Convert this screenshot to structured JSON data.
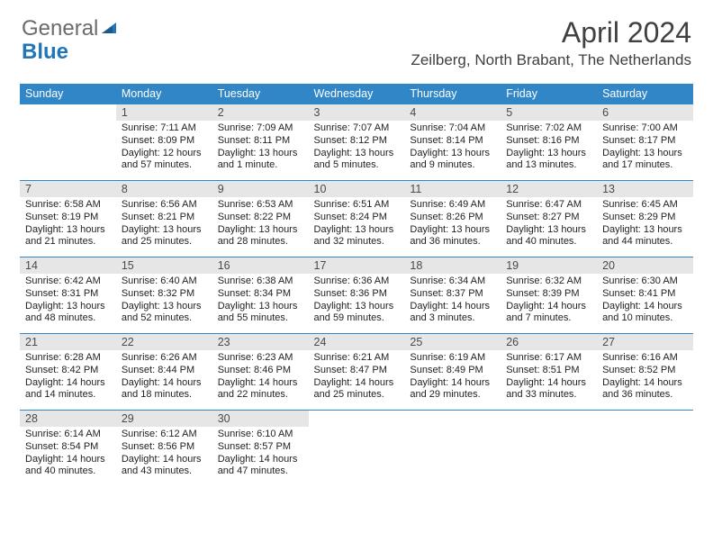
{
  "logo": {
    "text1": "General",
    "text2": "Blue"
  },
  "header": {
    "month": "April 2024",
    "location": "Zeilberg, North Brabant, The Netherlands"
  },
  "dayNames": [
    "Sunday",
    "Monday",
    "Tuesday",
    "Wednesday",
    "Thursday",
    "Friday",
    "Saturday"
  ],
  "colors": {
    "headerBg": "#3186c7",
    "headerText": "#ffffff",
    "dayNumBg": "#e6e6e6",
    "dayNumText": "#4a4a4a",
    "bodyText": "#222222",
    "rowBorder": "#3186c7",
    "logoGray": "#6b6b6b",
    "logoBlue": "#2176b8"
  },
  "weeks": [
    [
      {
        "empty": true
      },
      {
        "num": "1",
        "sunrise": "Sunrise: 7:11 AM",
        "sunset": "Sunset: 8:09 PM",
        "daylight1": "Daylight: 12 hours",
        "daylight2": "and 57 minutes."
      },
      {
        "num": "2",
        "sunrise": "Sunrise: 7:09 AM",
        "sunset": "Sunset: 8:11 PM",
        "daylight1": "Daylight: 13 hours",
        "daylight2": "and 1 minute."
      },
      {
        "num": "3",
        "sunrise": "Sunrise: 7:07 AM",
        "sunset": "Sunset: 8:12 PM",
        "daylight1": "Daylight: 13 hours",
        "daylight2": "and 5 minutes."
      },
      {
        "num": "4",
        "sunrise": "Sunrise: 7:04 AM",
        "sunset": "Sunset: 8:14 PM",
        "daylight1": "Daylight: 13 hours",
        "daylight2": "and 9 minutes."
      },
      {
        "num": "5",
        "sunrise": "Sunrise: 7:02 AM",
        "sunset": "Sunset: 8:16 PM",
        "daylight1": "Daylight: 13 hours",
        "daylight2": "and 13 minutes."
      },
      {
        "num": "6",
        "sunrise": "Sunrise: 7:00 AM",
        "sunset": "Sunset: 8:17 PM",
        "daylight1": "Daylight: 13 hours",
        "daylight2": "and 17 minutes."
      }
    ],
    [
      {
        "num": "7",
        "sunrise": "Sunrise: 6:58 AM",
        "sunset": "Sunset: 8:19 PM",
        "daylight1": "Daylight: 13 hours",
        "daylight2": "and 21 minutes."
      },
      {
        "num": "8",
        "sunrise": "Sunrise: 6:56 AM",
        "sunset": "Sunset: 8:21 PM",
        "daylight1": "Daylight: 13 hours",
        "daylight2": "and 25 minutes."
      },
      {
        "num": "9",
        "sunrise": "Sunrise: 6:53 AM",
        "sunset": "Sunset: 8:22 PM",
        "daylight1": "Daylight: 13 hours",
        "daylight2": "and 28 minutes."
      },
      {
        "num": "10",
        "sunrise": "Sunrise: 6:51 AM",
        "sunset": "Sunset: 8:24 PM",
        "daylight1": "Daylight: 13 hours",
        "daylight2": "and 32 minutes."
      },
      {
        "num": "11",
        "sunrise": "Sunrise: 6:49 AM",
        "sunset": "Sunset: 8:26 PM",
        "daylight1": "Daylight: 13 hours",
        "daylight2": "and 36 minutes."
      },
      {
        "num": "12",
        "sunrise": "Sunrise: 6:47 AM",
        "sunset": "Sunset: 8:27 PM",
        "daylight1": "Daylight: 13 hours",
        "daylight2": "and 40 minutes."
      },
      {
        "num": "13",
        "sunrise": "Sunrise: 6:45 AM",
        "sunset": "Sunset: 8:29 PM",
        "daylight1": "Daylight: 13 hours",
        "daylight2": "and 44 minutes."
      }
    ],
    [
      {
        "num": "14",
        "sunrise": "Sunrise: 6:42 AM",
        "sunset": "Sunset: 8:31 PM",
        "daylight1": "Daylight: 13 hours",
        "daylight2": "and 48 minutes."
      },
      {
        "num": "15",
        "sunrise": "Sunrise: 6:40 AM",
        "sunset": "Sunset: 8:32 PM",
        "daylight1": "Daylight: 13 hours",
        "daylight2": "and 52 minutes."
      },
      {
        "num": "16",
        "sunrise": "Sunrise: 6:38 AM",
        "sunset": "Sunset: 8:34 PM",
        "daylight1": "Daylight: 13 hours",
        "daylight2": "and 55 minutes."
      },
      {
        "num": "17",
        "sunrise": "Sunrise: 6:36 AM",
        "sunset": "Sunset: 8:36 PM",
        "daylight1": "Daylight: 13 hours",
        "daylight2": "and 59 minutes."
      },
      {
        "num": "18",
        "sunrise": "Sunrise: 6:34 AM",
        "sunset": "Sunset: 8:37 PM",
        "daylight1": "Daylight: 14 hours",
        "daylight2": "and 3 minutes."
      },
      {
        "num": "19",
        "sunrise": "Sunrise: 6:32 AM",
        "sunset": "Sunset: 8:39 PM",
        "daylight1": "Daylight: 14 hours",
        "daylight2": "and 7 minutes."
      },
      {
        "num": "20",
        "sunrise": "Sunrise: 6:30 AM",
        "sunset": "Sunset: 8:41 PM",
        "daylight1": "Daylight: 14 hours",
        "daylight2": "and 10 minutes."
      }
    ],
    [
      {
        "num": "21",
        "sunrise": "Sunrise: 6:28 AM",
        "sunset": "Sunset: 8:42 PM",
        "daylight1": "Daylight: 14 hours",
        "daylight2": "and 14 minutes."
      },
      {
        "num": "22",
        "sunrise": "Sunrise: 6:26 AM",
        "sunset": "Sunset: 8:44 PM",
        "daylight1": "Daylight: 14 hours",
        "daylight2": "and 18 minutes."
      },
      {
        "num": "23",
        "sunrise": "Sunrise: 6:23 AM",
        "sunset": "Sunset: 8:46 PM",
        "daylight1": "Daylight: 14 hours",
        "daylight2": "and 22 minutes."
      },
      {
        "num": "24",
        "sunrise": "Sunrise: 6:21 AM",
        "sunset": "Sunset: 8:47 PM",
        "daylight1": "Daylight: 14 hours",
        "daylight2": "and 25 minutes."
      },
      {
        "num": "25",
        "sunrise": "Sunrise: 6:19 AM",
        "sunset": "Sunset: 8:49 PM",
        "daylight1": "Daylight: 14 hours",
        "daylight2": "and 29 minutes."
      },
      {
        "num": "26",
        "sunrise": "Sunrise: 6:17 AM",
        "sunset": "Sunset: 8:51 PM",
        "daylight1": "Daylight: 14 hours",
        "daylight2": "and 33 minutes."
      },
      {
        "num": "27",
        "sunrise": "Sunrise: 6:16 AM",
        "sunset": "Sunset: 8:52 PM",
        "daylight1": "Daylight: 14 hours",
        "daylight2": "and 36 minutes."
      }
    ],
    [
      {
        "num": "28",
        "sunrise": "Sunrise: 6:14 AM",
        "sunset": "Sunset: 8:54 PM",
        "daylight1": "Daylight: 14 hours",
        "daylight2": "and 40 minutes."
      },
      {
        "num": "29",
        "sunrise": "Sunrise: 6:12 AM",
        "sunset": "Sunset: 8:56 PM",
        "daylight1": "Daylight: 14 hours",
        "daylight2": "and 43 minutes."
      },
      {
        "num": "30",
        "sunrise": "Sunrise: 6:10 AM",
        "sunset": "Sunset: 8:57 PM",
        "daylight1": "Daylight: 14 hours",
        "daylight2": "and 47 minutes."
      },
      {
        "empty": true
      },
      {
        "empty": true
      },
      {
        "empty": true
      },
      {
        "empty": true
      }
    ]
  ]
}
